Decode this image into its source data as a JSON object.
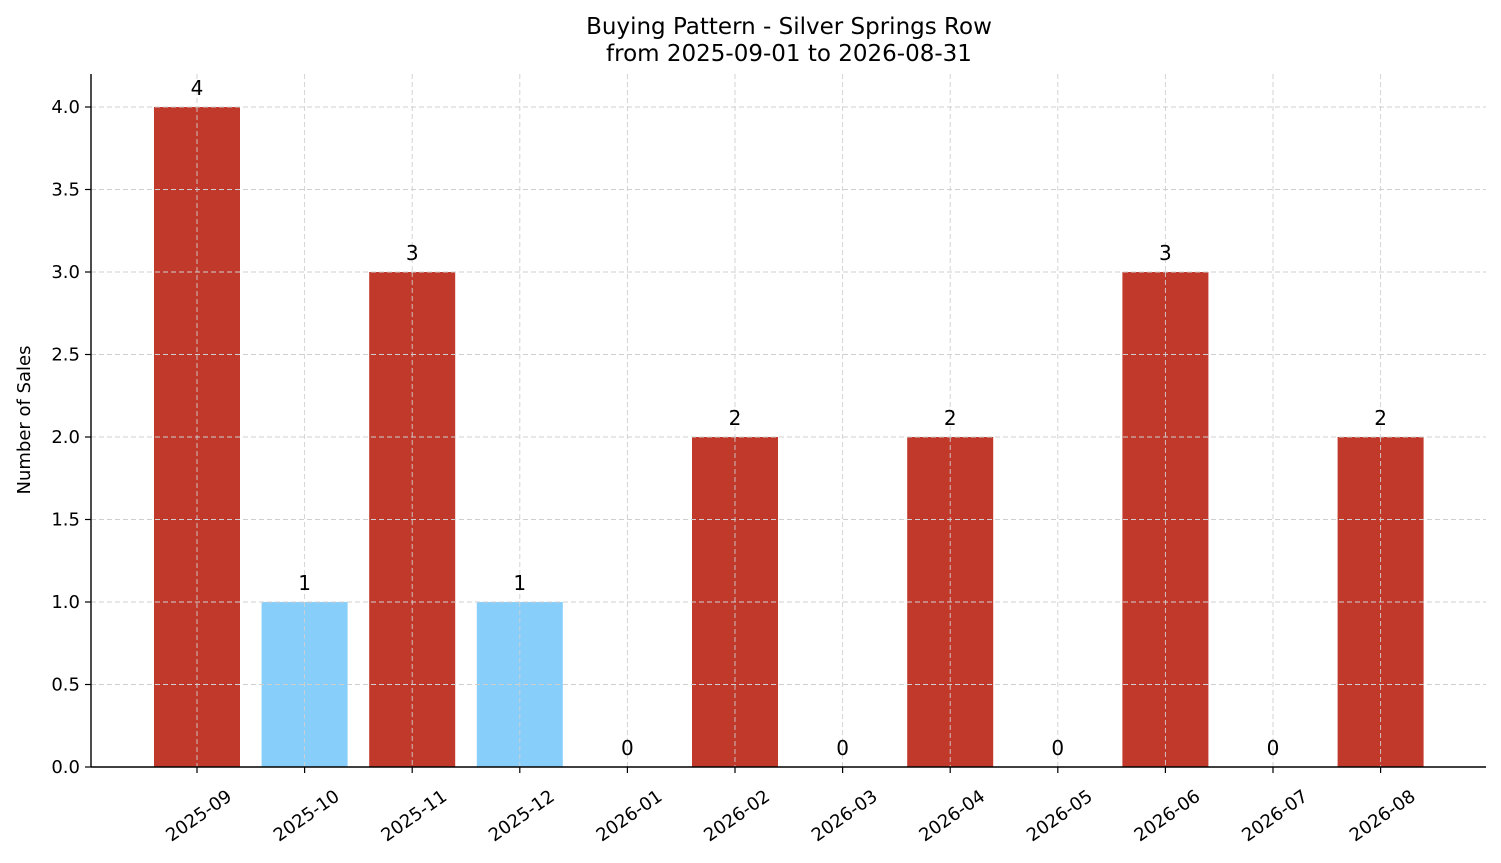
{
  "chart_data": {
    "type": "bar",
    "title": "Buying Pattern - Silver Springs Row",
    "subtitle": "from 2025-09-01 to 2026-08-31",
    "xlabel": "",
    "ylabel": "Number of Sales",
    "categories": [
      "2025-09",
      "2025-10",
      "2025-11",
      "2025-12",
      "2026-01",
      "2026-02",
      "2026-03",
      "2026-04",
      "2026-05",
      "2026-06",
      "2026-07",
      "2026-08"
    ],
    "values": [
      4,
      1,
      3,
      1,
      0,
      2,
      0,
      2,
      0,
      3,
      0,
      2
    ],
    "data_labels": [
      "4",
      "1",
      "3",
      "1",
      "0",
      "2",
      "0",
      "2",
      "0",
      "3",
      "0",
      "2"
    ],
    "bar_colors": [
      "#c0392b",
      "#87cefa",
      "#c0392b",
      "#87cefa",
      "#c0392b",
      "#c0392b",
      "#c0392b",
      "#c0392b",
      "#c0392b",
      "#c0392b",
      "#c0392b",
      "#c0392b"
    ],
    "ylim": [
      0,
      4.2
    ],
    "yticks": [
      "0.0",
      "0.5",
      "1.0",
      "1.5",
      "2.0",
      "2.5",
      "3.0",
      "3.5",
      "4.0"
    ],
    "grid": true,
    "legend": false
  }
}
